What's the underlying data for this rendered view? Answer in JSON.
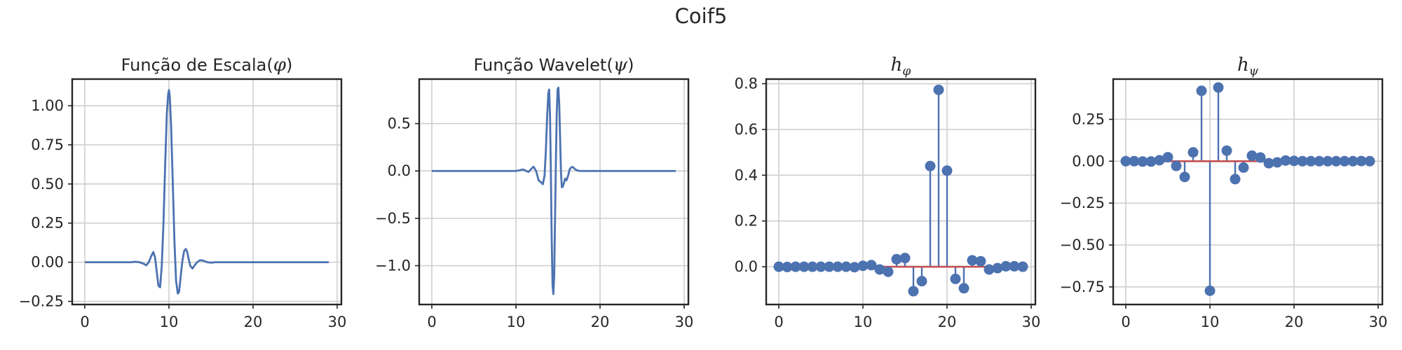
{
  "figure": {
    "suptitle": "Coif5"
  },
  "chart_data": [
    {
      "id": "scaling",
      "type": "line",
      "title": "Função de Escala(φ)",
      "title_text": "Função de Escala(",
      "title_symbol": "φ",
      "title_close": ")",
      "xlim": [
        -1.5,
        30.5
      ],
      "ylim": [
        -0.27,
        1.17
      ],
      "xticks": [
        0,
        10,
        20,
        30
      ],
      "yticks": [
        -0.25,
        0.0,
        0.25,
        0.5,
        0.75,
        1.0
      ],
      "ytick_labels": [
        "−0.25",
        "0.00",
        "0.25",
        "0.50",
        "0.75",
        "1.00"
      ],
      "grid": true,
      "series": [
        {
          "color": "#4c72b0",
          "x": [
            0,
            5,
            5.5,
            6,
            6.5,
            7,
            7.3,
            7.6,
            7.9,
            8.15,
            8.35,
            8.55,
            8.75,
            8.95,
            9.15,
            9.35,
            9.55,
            9.75,
            9.9,
            10.0,
            10.1,
            10.25,
            10.45,
            10.65,
            10.85,
            11.05,
            11.2,
            11.4,
            11.6,
            11.8,
            12.0,
            12.15,
            12.35,
            12.55,
            12.8,
            13.05,
            13.35,
            13.65,
            14.0,
            14.3,
            14.6,
            15.0,
            15.5,
            16.0,
            29
          ],
          "y": [
            0.0,
            0.0,
            0.0,
            0.003,
            0.0,
            -0.01,
            -0.02,
            0.0,
            0.04,
            0.065,
            0.03,
            -0.06,
            -0.15,
            -0.16,
            -0.02,
            0.25,
            0.62,
            0.95,
            1.07,
            1.1,
            1.06,
            0.88,
            0.52,
            0.14,
            -0.12,
            -0.2,
            -0.19,
            -0.09,
            0.01,
            0.07,
            0.085,
            0.07,
            0.02,
            -0.025,
            -0.04,
            -0.02,
            0.0,
            0.012,
            0.012,
            0.005,
            0.0,
            -0.003,
            0.0,
            0.0,
            0.0
          ]
        }
      ]
    },
    {
      "id": "wavelet",
      "type": "line",
      "title": "Função Wavelet(ψ)",
      "title_text": "Função Wavelet(",
      "title_symbol": "ψ",
      "title_close": ")",
      "xlim": [
        -1.5,
        30.5
      ],
      "ylim": [
        -1.41,
        0.97
      ],
      "xticks": [
        0,
        10,
        20,
        30
      ],
      "yticks": [
        -1.0,
        -0.5,
        0.0,
        0.5
      ],
      "ytick_labels": [
        "−1.0",
        "−0.5",
        "0.0",
        "0.5"
      ],
      "grid": true,
      "series": [
        {
          "color": "#4c72b0",
          "x": [
            0,
            9,
            9.5,
            10,
            10.3,
            10.6,
            10.9,
            11.2,
            11.5,
            11.8,
            12.1,
            12.4,
            12.7,
            13.0,
            13.2,
            13.4,
            13.55,
            13.7,
            13.85,
            13.95,
            14.05,
            14.15,
            14.25,
            14.35,
            14.45,
            14.55,
            14.65,
            14.75,
            14.85,
            14.95,
            15.05,
            15.15,
            15.25,
            15.35,
            15.45,
            15.55,
            15.7,
            15.85,
            16.0,
            16.2,
            16.4,
            16.6,
            16.8,
            17.0,
            17.3,
            17.6,
            18.0,
            18.5,
            19.0,
            20.0,
            29
          ],
          "y": [
            0.0,
            0.0,
            0.0,
            0.0,
            0.005,
            0.012,
            0.015,
            0.0,
            -0.01,
            0.02,
            0.045,
            0.0,
            -0.1,
            -0.12,
            -0.14,
            -0.05,
            0.2,
            0.55,
            0.82,
            0.86,
            0.6,
            0.0,
            -0.7,
            -1.2,
            -1.3,
            -1.1,
            -0.5,
            0.1,
            0.6,
            0.86,
            0.88,
            0.7,
            0.35,
            0.0,
            -0.17,
            -0.17,
            -0.13,
            -0.08,
            -0.1,
            -0.05,
            0.02,
            0.04,
            0.04,
            0.02,
            0.005,
            0.0,
            0.0,
            0.0,
            0.0,
            0.0,
            0.0
          ]
        }
      ]
    },
    {
      "id": "h_phi",
      "type": "stem",
      "title": "hφ",
      "title_main": "h",
      "title_sub": "φ",
      "xlim": [
        -1.5,
        30.5
      ],
      "ylim": [
        -0.165,
        0.82
      ],
      "xticks": [
        0,
        10,
        20,
        30
      ],
      "yticks": [
        0.0,
        0.2,
        0.4,
        0.6,
        0.8
      ],
      "ytick_labels": [
        "0.0",
        "0.2",
        "0.4",
        "0.6",
        "0.8"
      ],
      "grid": true,
      "baseline_color": "#c44e52",
      "x": [
        0,
        1,
        2,
        3,
        4,
        5,
        6,
        7,
        8,
        9,
        10,
        11,
        12,
        13,
        14,
        15,
        16,
        17,
        18,
        19,
        20,
        21,
        22,
        23,
        24,
        25,
        26,
        27,
        28,
        29
      ],
      "values": [
        0.0,
        -0.001,
        0.0,
        0.0,
        0.0,
        0.0,
        0.0,
        0.0,
        0.0,
        -0.002,
        0.004,
        0.007,
        -0.012,
        -0.022,
        0.033,
        0.038,
        -0.107,
        -0.063,
        0.44,
        0.773,
        0.42,
        -0.053,
        -0.094,
        0.028,
        0.024,
        -0.012,
        -0.006,
        0.002,
        0.002,
        0.0
      ]
    },
    {
      "id": "h_psi",
      "type": "stem",
      "title": "hψ",
      "title_main": "h",
      "title_sub": "ψ",
      "xlim": [
        -1.5,
        30.5
      ],
      "ylim": [
        -0.855,
        0.49
      ],
      "xticks": [
        0,
        10,
        20,
        30
      ],
      "yticks": [
        -0.75,
        -0.5,
        -0.25,
        0.0,
        0.25
      ],
      "ytick_labels": [
        "−0.75",
        "−0.50",
        "−0.25",
        "0.00",
        "0.25"
      ],
      "grid": true,
      "baseline_color": "#c44e52",
      "x": [
        0,
        1,
        2,
        3,
        4,
        5,
        6,
        7,
        8,
        9,
        10,
        11,
        12,
        13,
        14,
        15,
        16,
        17,
        18,
        19,
        20,
        21,
        22,
        23,
        24,
        25,
        26,
        27,
        28,
        29
      ],
      "values": [
        0.0,
        0.0,
        -0.002,
        -0.002,
        0.006,
        0.024,
        -0.028,
        -0.094,
        0.053,
        0.42,
        -0.773,
        0.44,
        0.063,
        -0.107,
        -0.038,
        0.033,
        0.022,
        -0.012,
        -0.007,
        0.004,
        0.002,
        0.0,
        0.0,
        0.0,
        0.0,
        0.0,
        0.0,
        0.0,
        0.001,
        0.0
      ]
    }
  ]
}
